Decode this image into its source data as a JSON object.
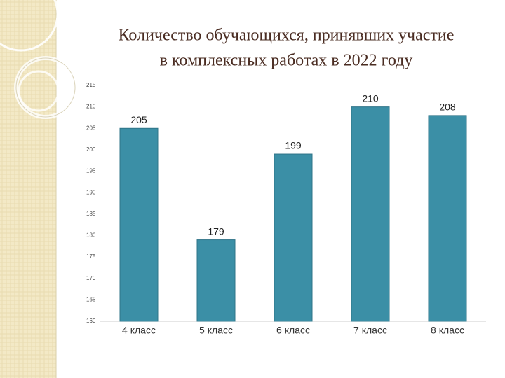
{
  "chart_data": {
    "type": "bar",
    "title_lines": [
      "Количество обучающихся, принявших участие",
      "в комплексных работах в 2022 году"
    ],
    "categories": [
      "4 класс",
      "5 класс",
      "6 класс",
      "7 класс",
      "8 класс"
    ],
    "values": [
      205,
      179,
      199,
      210,
      208
    ],
    "color": "#3b8fa6",
    "ylim": [
      160,
      215
    ],
    "yticks": [
      160,
      165,
      170,
      175,
      180,
      185,
      190,
      195,
      200,
      205,
      210,
      215
    ],
    "grid": false
  }
}
